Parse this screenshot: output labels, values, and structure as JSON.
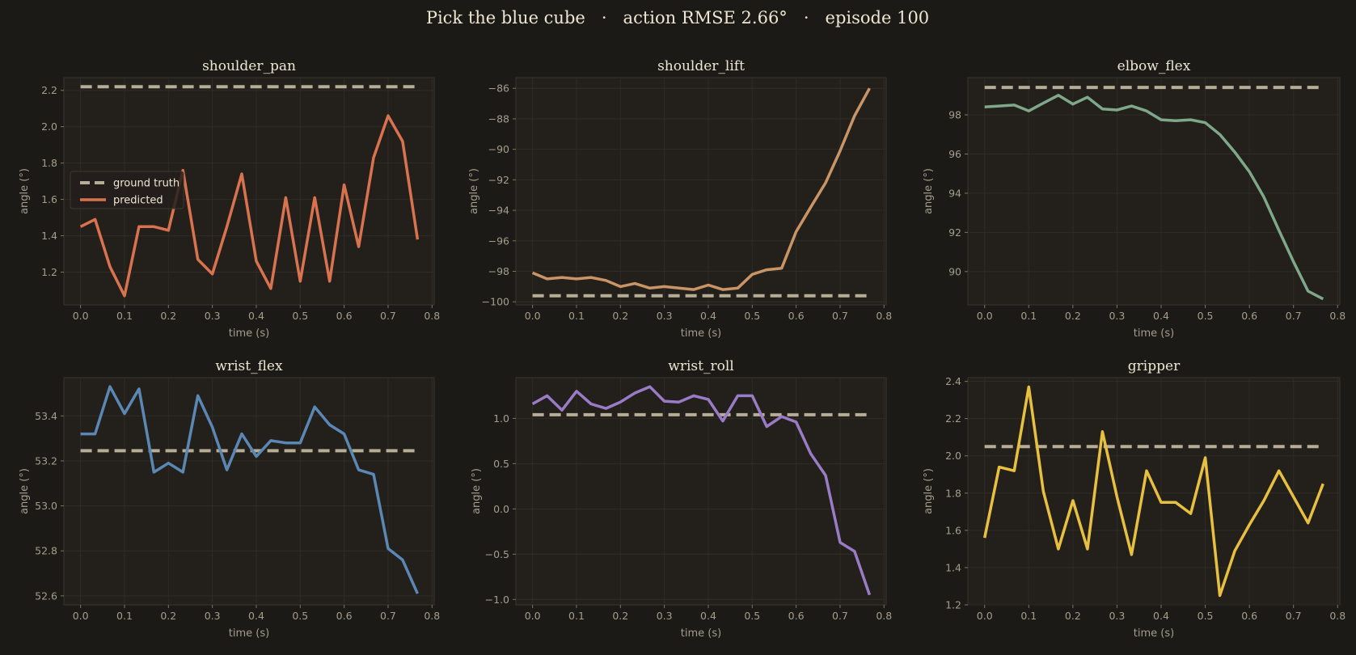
{
  "figure": {
    "title": "Pick the blue cube   ·   action RMSE 2.66°   ·   episode 100",
    "background": "#1b1a16",
    "panel_background": "#231f1b",
    "grid_color": "#2f2b26",
    "ground_truth_color": "#b5ad96"
  },
  "chart_data": [
    {
      "type": "line",
      "title": "shoulder_pan",
      "xlabel": "time (s)",
      "ylabel": "angle (°)",
      "xlim": [
        -0.038,
        0.805
      ],
      "ylim": [
        1.02,
        2.27
      ],
      "xticks": [
        0.0,
        0.1,
        0.2,
        0.3,
        0.4,
        0.5,
        0.6,
        0.7,
        0.8
      ],
      "yticks": [
        1.2,
        1.4,
        1.6,
        1.8,
        2.0,
        2.2
      ],
      "ytick_decimals": 1,
      "grid": true,
      "legend": {
        "position": "center-left",
        "entries": [
          "ground truth",
          "predicted"
        ]
      },
      "x": [
        0.0,
        0.033,
        0.067,
        0.1,
        0.133,
        0.167,
        0.2,
        0.233,
        0.267,
        0.3,
        0.333,
        0.367,
        0.4,
        0.433,
        0.467,
        0.5,
        0.533,
        0.567,
        0.6,
        0.633,
        0.667,
        0.7,
        0.733,
        0.767
      ],
      "series": [
        {
          "name": "ground truth",
          "style": "dashed",
          "color": "#b5ad96",
          "values": [
            2.22,
            2.22
          ],
          "x": [
            0.0,
            0.767
          ]
        },
        {
          "name": "predicted",
          "style": "solid",
          "color": "#d9734f",
          "values": [
            1.45,
            1.49,
            1.23,
            1.07,
            1.45,
            1.45,
            1.43,
            1.76,
            1.27,
            1.19,
            1.45,
            1.74,
            1.26,
            1.11,
            1.61,
            1.15,
            1.61,
            1.15,
            1.68,
            1.34,
            1.83,
            2.06,
            1.92,
            1.38
          ]
        }
      ]
    },
    {
      "type": "line",
      "title": "shoulder_lift",
      "xlabel": "time (s)",
      "ylabel": "angle (°)",
      "xlim": [
        -0.038,
        0.805
      ],
      "ylim": [
        -100.2,
        -85.3
      ],
      "xticks": [
        0.0,
        0.1,
        0.2,
        0.3,
        0.4,
        0.5,
        0.6,
        0.7,
        0.8
      ],
      "yticks": [
        -100,
        -98,
        -96,
        -94,
        -92,
        -90,
        -88,
        -86
      ],
      "ytick_decimals": 0,
      "grid": true,
      "x": [
        0.0,
        0.033,
        0.067,
        0.1,
        0.133,
        0.167,
        0.2,
        0.233,
        0.267,
        0.3,
        0.333,
        0.367,
        0.4,
        0.433,
        0.467,
        0.5,
        0.533,
        0.567,
        0.6,
        0.633,
        0.667,
        0.7,
        0.733,
        0.767
      ],
      "series": [
        {
          "name": "ground truth",
          "style": "dashed",
          "color": "#b5ad96",
          "values": [
            -99.6,
            -99.6
          ],
          "x": [
            0.0,
            0.767
          ]
        },
        {
          "name": "predicted",
          "style": "solid",
          "color": "#c99466",
          "values": [
            -98.1,
            -98.5,
            -98.4,
            -98.5,
            -98.4,
            -98.6,
            -99.0,
            -98.8,
            -99.1,
            -99.0,
            -99.1,
            -99.2,
            -98.9,
            -99.2,
            -99.1,
            -98.2,
            -97.9,
            -97.8,
            -95.4,
            -93.8,
            -92.2,
            -90.1,
            -87.8,
            -86.0
          ]
        }
      ]
    },
    {
      "type": "line",
      "title": "elbow_flex",
      "xlabel": "time (s)",
      "ylabel": "angle (°)",
      "xlim": [
        -0.038,
        0.805
      ],
      "ylim": [
        88.3,
        99.9
      ],
      "xticks": [
        0.0,
        0.1,
        0.2,
        0.3,
        0.4,
        0.5,
        0.6,
        0.7,
        0.8
      ],
      "yticks": [
        90,
        92,
        94,
        96,
        98
      ],
      "ytick_decimals": 0,
      "grid": true,
      "x": [
        0.0,
        0.033,
        0.067,
        0.1,
        0.133,
        0.167,
        0.2,
        0.233,
        0.267,
        0.3,
        0.333,
        0.367,
        0.4,
        0.433,
        0.467,
        0.5,
        0.533,
        0.567,
        0.6,
        0.633,
        0.667,
        0.7,
        0.733,
        0.767
      ],
      "series": [
        {
          "name": "ground truth",
          "style": "dashed",
          "color": "#b5ad96",
          "values": [
            99.4,
            99.4
          ],
          "x": [
            0.0,
            0.767
          ]
        },
        {
          "name": "predicted",
          "style": "solid",
          "color": "#7fa88a",
          "values": [
            98.4,
            98.45,
            98.5,
            98.2,
            98.6,
            99.0,
            98.55,
            98.9,
            98.3,
            98.25,
            98.45,
            98.2,
            97.75,
            97.7,
            97.75,
            97.6,
            97.0,
            96.1,
            95.1,
            93.8,
            92.1,
            90.5,
            89.0,
            88.6
          ]
        }
      ]
    },
    {
      "type": "line",
      "title": "wrist_flex",
      "xlabel": "time (s)",
      "ylabel": "angle (°)",
      "xlim": [
        -0.038,
        0.805
      ],
      "ylim": [
        52.56,
        53.57
      ],
      "xticks": [
        0.0,
        0.1,
        0.2,
        0.3,
        0.4,
        0.5,
        0.6,
        0.7,
        0.8
      ],
      "yticks": [
        52.6,
        52.8,
        53.0,
        53.2,
        53.4
      ],
      "ytick_decimals": 1,
      "grid": true,
      "x": [
        0.0,
        0.033,
        0.067,
        0.1,
        0.133,
        0.167,
        0.2,
        0.233,
        0.267,
        0.3,
        0.333,
        0.367,
        0.4,
        0.433,
        0.467,
        0.5,
        0.533,
        0.567,
        0.6,
        0.633,
        0.667,
        0.7,
        0.733,
        0.767
      ],
      "series": [
        {
          "name": "ground truth",
          "style": "dashed",
          "color": "#b5ad96",
          "values": [
            53.245,
            53.245
          ],
          "x": [
            0.0,
            0.767
          ]
        },
        {
          "name": "predicted",
          "style": "solid",
          "color": "#5b87b5",
          "values": [
            53.32,
            53.32,
            53.53,
            53.41,
            53.52,
            53.15,
            53.19,
            53.15,
            53.49,
            53.35,
            53.16,
            53.32,
            53.22,
            53.29,
            53.28,
            53.28,
            53.44,
            53.36,
            53.32,
            53.16,
            53.14,
            52.81,
            52.76,
            52.61
          ]
        }
      ]
    },
    {
      "type": "line",
      "title": "wrist_roll",
      "xlabel": "time (s)",
      "ylabel": "angle (°)",
      "xlim": [
        -0.038,
        0.805
      ],
      "ylim": [
        -1.06,
        1.45
      ],
      "xticks": [
        0.0,
        0.1,
        0.2,
        0.3,
        0.4,
        0.5,
        0.6,
        0.7,
        0.8
      ],
      "yticks": [
        -1.0,
        -0.5,
        0.0,
        0.5,
        1.0
      ],
      "ytick_decimals": 1,
      "grid": true,
      "x": [
        0.0,
        0.033,
        0.067,
        0.1,
        0.133,
        0.167,
        0.2,
        0.233,
        0.267,
        0.3,
        0.333,
        0.367,
        0.4,
        0.433,
        0.467,
        0.5,
        0.533,
        0.567,
        0.6,
        0.633,
        0.667,
        0.7,
        0.733,
        0.767
      ],
      "series": [
        {
          "name": "ground truth",
          "style": "dashed",
          "color": "#b5ad96",
          "values": [
            1.04,
            1.04
          ],
          "x": [
            0.0,
            0.767
          ]
        },
        {
          "name": "predicted",
          "style": "solid",
          "color": "#9a7cc6",
          "values": [
            1.16,
            1.25,
            1.09,
            1.3,
            1.16,
            1.11,
            1.18,
            1.28,
            1.35,
            1.19,
            1.18,
            1.25,
            1.21,
            0.97,
            1.25,
            1.25,
            0.91,
            1.02,
            0.96,
            0.61,
            0.37,
            -0.37,
            -0.47,
            -0.95
          ]
        }
      ]
    },
    {
      "type": "line",
      "title": "gripper",
      "xlabel": "time (s)",
      "ylabel": "angle (°)",
      "xlim": [
        -0.038,
        0.805
      ],
      "ylim": [
        1.2,
        2.42
      ],
      "xticks": [
        0.0,
        0.1,
        0.2,
        0.3,
        0.4,
        0.5,
        0.6,
        0.7,
        0.8
      ],
      "yticks": [
        1.2,
        1.4,
        1.6,
        1.8,
        2.0,
        2.2,
        2.4
      ],
      "ytick_decimals": 1,
      "grid": true,
      "x": [
        0.0,
        0.033,
        0.067,
        0.1,
        0.133,
        0.167,
        0.2,
        0.233,
        0.267,
        0.3,
        0.333,
        0.367,
        0.4,
        0.433,
        0.467,
        0.5,
        0.533,
        0.567,
        0.6,
        0.633,
        0.667,
        0.7,
        0.733,
        0.767
      ],
      "series": [
        {
          "name": "ground truth",
          "style": "dashed",
          "color": "#b5ad96",
          "values": [
            2.05,
            2.05
          ],
          "x": [
            0.0,
            0.767
          ]
        },
        {
          "name": "predicted",
          "style": "solid",
          "color": "#e8c040",
          "values": [
            1.56,
            1.94,
            1.92,
            2.37,
            1.81,
            1.5,
            1.76,
            1.5,
            2.13,
            1.78,
            1.47,
            1.92,
            1.75,
            1.75,
            1.69,
            1.99,
            1.25,
            1.49,
            1.63,
            1.76,
            1.92,
            1.78,
            1.64,
            1.85
          ]
        }
      ]
    }
  ]
}
